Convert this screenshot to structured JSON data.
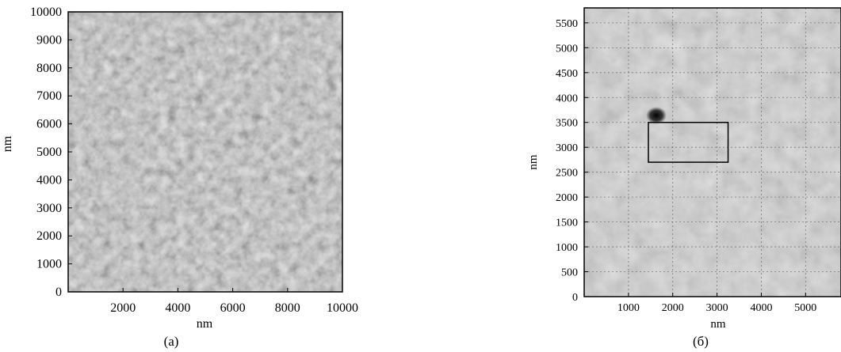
{
  "figure": {
    "panels": [
      {
        "id": "a",
        "caption": "(a)",
        "x_axis_label": "nm",
        "y_axis_label": "nm",
        "x_ticks": [
          "2000",
          "4000",
          "6000",
          "8000",
          "10000"
        ],
        "y_ticks": [
          "0",
          "1000",
          "2000",
          "3000",
          "4000",
          "5000",
          "6000",
          "7000",
          "8000",
          "9000",
          "10000"
        ],
        "x_range": [
          0,
          10000
        ],
        "y_range": [
          0,
          10000
        ],
        "grid": false,
        "image": "grayscale granular surface topography"
      },
      {
        "id": "b",
        "caption": "(б)",
        "x_axis_label": "nm",
        "y_axis_label": "nm",
        "x_ticks": [
          "1000",
          "2000",
          "3000",
          "4000",
          "5000"
        ],
        "y_ticks": [
          "0",
          "500",
          "1000",
          "1500",
          "2000",
          "2500",
          "3000",
          "3500",
          "4000",
          "4500",
          "5000",
          "5500"
        ],
        "x_range": [
          0,
          5800
        ],
        "y_range": [
          0,
          5800
        ],
        "grid": true,
        "image": "grayscale smoother surface topography with dark spot",
        "highlight_region": {
          "x_from": 1450,
          "x_to": 3250,
          "y_from": 2700,
          "y_to": 3500
        }
      }
    ]
  }
}
